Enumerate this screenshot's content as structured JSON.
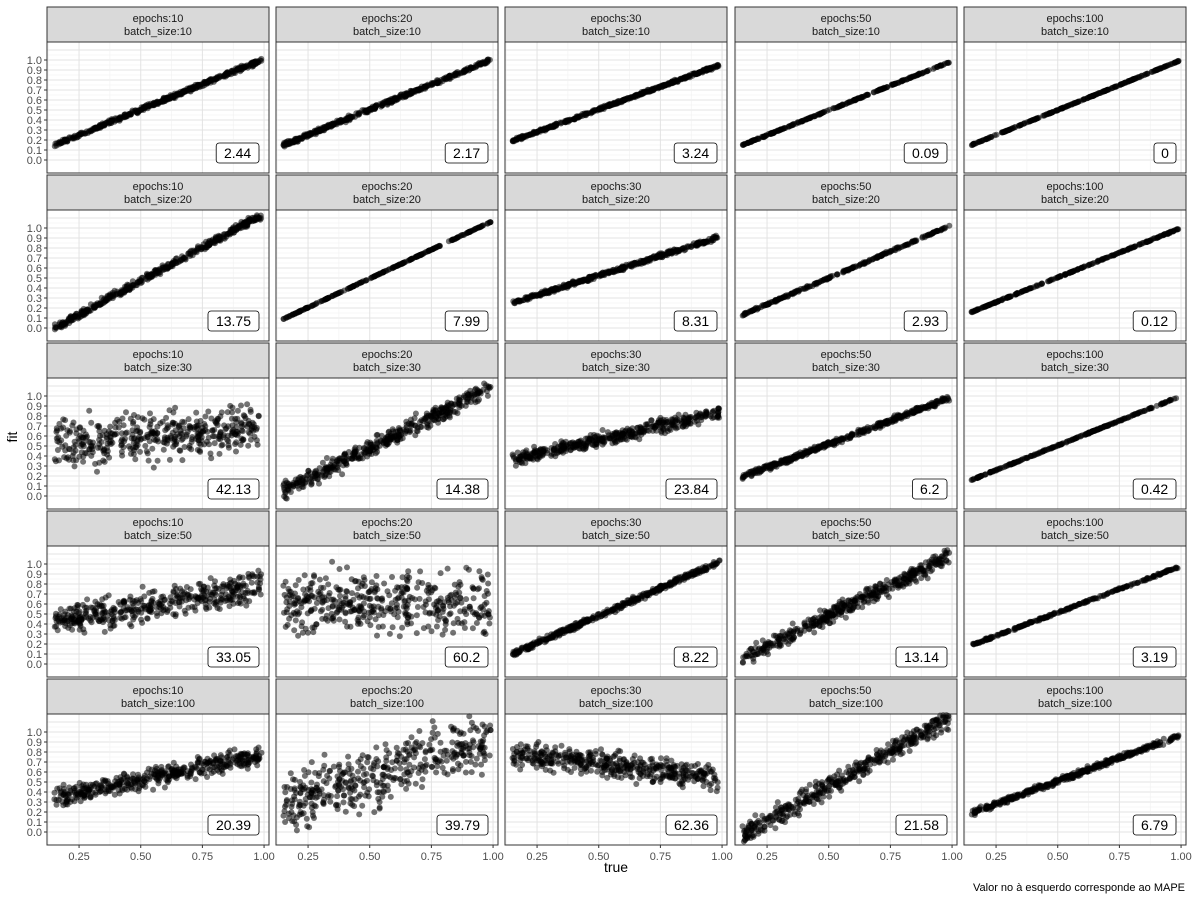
{
  "chart_data": {
    "type": "scatter",
    "facet_grid": {
      "rows": 5,
      "cols": 5
    },
    "xlabel": "true",
    "ylabel": "fit",
    "caption": "Valor no à esquerdo corresponde ao MAPE",
    "xlim": [
      0.12,
      1.02
    ],
    "ylim": [
      -0.13,
      1.18
    ],
    "x_ticks": [
      0.25,
      0.5,
      0.75,
      1.0
    ],
    "x_tick_labels": [
      "0.25",
      "0.50",
      "0.75",
      "1.00"
    ],
    "y_ticks": [
      0.0,
      0.1,
      0.2,
      0.3,
      0.4,
      0.5,
      0.6,
      0.7,
      0.8,
      0.9,
      1.0
    ],
    "y_tick_labels": [
      "0.0",
      "0.1",
      "0.2",
      "0.3",
      "0.4",
      "0.5",
      "0.6",
      "0.7",
      "0.8",
      "0.9",
      "1.0"
    ],
    "grid": true,
    "point_color": "#000000",
    "strip_color": "#d9d9d9",
    "panels": [
      {
        "strip": [
          "epochs:10",
          "batch_size:10"
        ],
        "mape": "2.44",
        "trend": {
          "x0": 0.15,
          "y0": 0.15,
          "x1": 0.99,
          "y1": 1.0
        },
        "spread": 0.03
      },
      {
        "strip": [
          "epochs:20",
          "batch_size:10"
        ],
        "mape": "2.17",
        "trend": {
          "x0": 0.15,
          "y0": 0.15,
          "x1": 0.99,
          "y1": 1.0
        },
        "spread": 0.03
      },
      {
        "strip": [
          "epochs:30",
          "batch_size:10"
        ],
        "mape": "3.24",
        "trend": {
          "x0": 0.15,
          "y0": 0.19,
          "x1": 0.99,
          "y1": 0.95
        },
        "spread": 0.02
      },
      {
        "strip": [
          "epochs:50",
          "batch_size:10"
        ],
        "mape": "0.09",
        "trend": {
          "x0": 0.15,
          "y0": 0.15,
          "x1": 0.99,
          "y1": 0.98
        },
        "spread": 0.008
      },
      {
        "strip": [
          "epochs:100",
          "batch_size:10"
        ],
        "mape": "0",
        "trend": {
          "x0": 0.15,
          "y0": 0.15,
          "x1": 0.99,
          "y1": 0.99
        },
        "spread": 0.005
      },
      {
        "strip": [
          "epochs:10",
          "batch_size:20"
        ],
        "mape": "13.75",
        "trend": {
          "x0": 0.15,
          "y0": 0.0,
          "x1": 0.99,
          "y1": 1.13
        },
        "spread": 0.05
      },
      {
        "strip": [
          "epochs:20",
          "batch_size:20"
        ],
        "mape": "7.99",
        "trend": {
          "x0": 0.15,
          "y0": 0.09,
          "x1": 0.99,
          "y1": 1.06
        },
        "spread": 0.005
      },
      {
        "strip": [
          "epochs:30",
          "batch_size:20"
        ],
        "mape": "8.31",
        "trend": {
          "x0": 0.15,
          "y0": 0.25,
          "x1": 0.99,
          "y1": 0.91
        },
        "spread": 0.03
      },
      {
        "strip": [
          "epochs:50",
          "batch_size:20"
        ],
        "mape": "2.93",
        "trend": {
          "x0": 0.15,
          "y0": 0.13,
          "x1": 0.99,
          "y1": 1.02
        },
        "spread": 0.015
      },
      {
        "strip": [
          "epochs:100",
          "batch_size:20"
        ],
        "mape": "0.12",
        "trend": {
          "x0": 0.15,
          "y0": 0.16,
          "x1": 0.99,
          "y1": 0.99
        },
        "spread": 0.008
      },
      {
        "strip": [
          "epochs:10",
          "batch_size:30"
        ],
        "mape": "42.13",
        "trend": {
          "x0": 0.15,
          "y0": 0.5,
          "x1": 0.99,
          "y1": 0.7
        },
        "spread": 0.35
      },
      {
        "strip": [
          "epochs:20",
          "batch_size:30"
        ],
        "mape": "14.38",
        "trend": {
          "x0": 0.15,
          "y0": 0.05,
          "x1": 0.99,
          "y1": 1.08
        },
        "spread": 0.13
      },
      {
        "strip": [
          "epochs:30",
          "batch_size:30"
        ],
        "mape": "23.84",
        "trend": {
          "x0": 0.15,
          "y0": 0.36,
          "x1": 0.99,
          "y1": 0.84
        },
        "spread": 0.1
      },
      {
        "strip": [
          "epochs:50",
          "batch_size:30"
        ],
        "mape": "6.2",
        "trend": {
          "x0": 0.15,
          "y0": 0.19,
          "x1": 0.99,
          "y1": 0.98
        },
        "spread": 0.04
      },
      {
        "strip": [
          "epochs:100",
          "batch_size:30"
        ],
        "mape": "0.42",
        "trend": {
          "x0": 0.15,
          "y0": 0.16,
          "x1": 0.99,
          "y1": 0.99
        },
        "spread": 0.008
      },
      {
        "strip": [
          "epochs:10",
          "batch_size:50"
        ],
        "mape": "33.05",
        "trend": {
          "x0": 0.15,
          "y0": 0.42,
          "x1": 0.99,
          "y1": 0.78
        },
        "spread": 0.22
      },
      {
        "strip": [
          "epochs:20",
          "batch_size:50"
        ],
        "mape": "60.2",
        "trend": {
          "x0": 0.15,
          "y0": 0.6,
          "x1": 0.99,
          "y1": 0.6
        },
        "spread": 0.45
      },
      {
        "strip": [
          "epochs:30",
          "batch_size:50"
        ],
        "mape": "8.22",
        "trend": {
          "x0": 0.15,
          "y0": 0.1,
          "x1": 0.99,
          "y1": 1.02
        },
        "spread": 0.04
      },
      {
        "strip": [
          "epochs:50",
          "batch_size:50"
        ],
        "mape": "13.14",
        "trend": {
          "x0": 0.15,
          "y0": 0.06,
          "x1": 0.99,
          "y1": 1.08
        },
        "spread": 0.12
      },
      {
        "strip": [
          "epochs:100",
          "batch_size:50"
        ],
        "mape": "3.19",
        "trend": {
          "x0": 0.15,
          "y0": 0.19,
          "x1": 0.99,
          "y1": 0.97
        },
        "spread": 0.015
      },
      {
        "strip": [
          "epochs:10",
          "batch_size:100"
        ],
        "mape": "20.39",
        "trend": {
          "x0": 0.15,
          "y0": 0.34,
          "x1": 0.99,
          "y1": 0.77
        },
        "spread": 0.14
      },
      {
        "strip": [
          "epochs:20",
          "batch_size:100"
        ],
        "mape": "39.79",
        "trend": {
          "x0": 0.15,
          "y0": 0.3,
          "x1": 0.99,
          "y1": 0.9
        },
        "spread": 0.45
      },
      {
        "strip": [
          "epochs:30",
          "batch_size:100"
        ],
        "mape": "62.36",
        "trend": {
          "x0": 0.15,
          "y0": 0.78,
          "x1": 0.99,
          "y1": 0.55
        },
        "spread": 0.18
      },
      {
        "strip": [
          "epochs:50",
          "batch_size:100"
        ],
        "mape": "21.58",
        "trend": {
          "x0": 0.15,
          "y0": -0.04,
          "x1": 0.99,
          "y1": 1.15
        },
        "spread": 0.16
      },
      {
        "strip": [
          "epochs:100",
          "batch_size:100"
        ],
        "mape": "6.79",
        "trend": {
          "x0": 0.15,
          "y0": 0.19,
          "x1": 0.99,
          "y1": 0.96
        },
        "spread": 0.04
      }
    ]
  }
}
